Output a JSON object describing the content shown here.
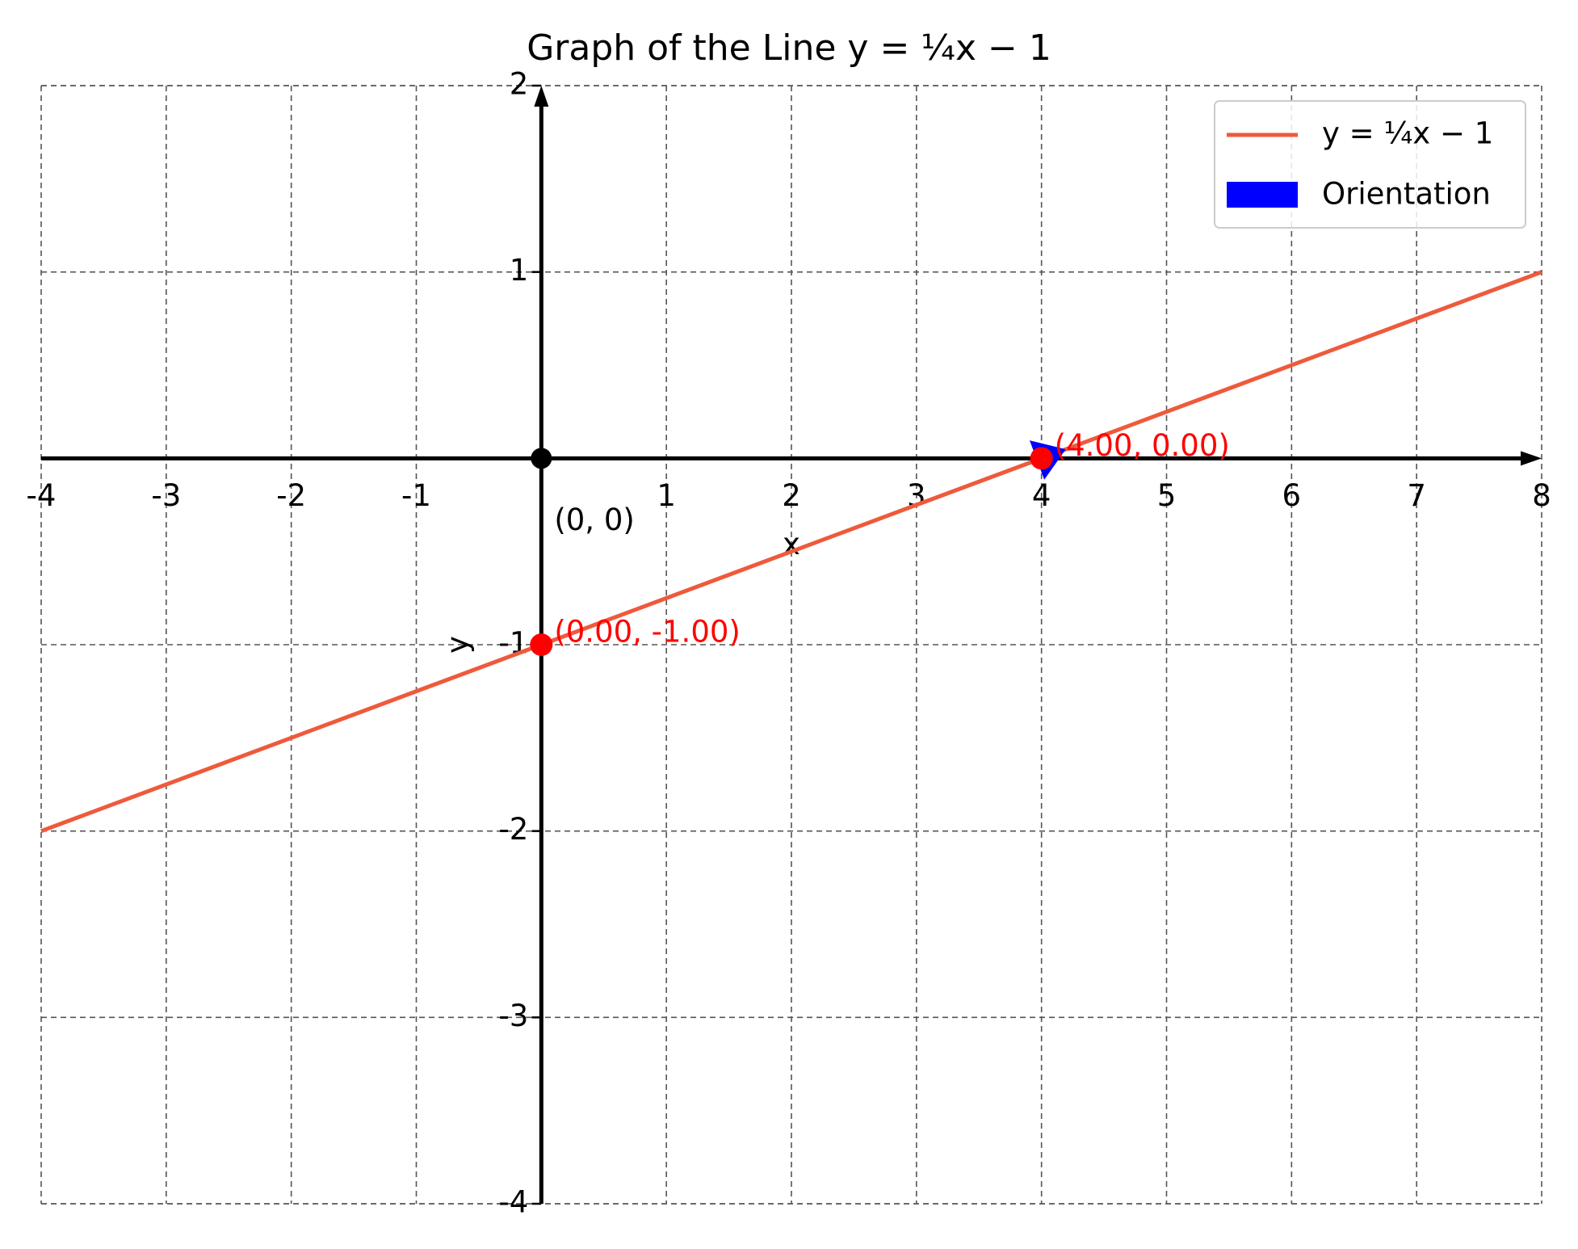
{
  "chart_data": {
    "type": "line",
    "title": "Graph of the Line y = ¼x − 1",
    "xlabel": "x",
    "ylabel": "y",
    "xlim": [
      -4,
      8
    ],
    "ylim": [
      -4,
      2
    ],
    "xticks": [
      -4,
      -3,
      -2,
      -1,
      1,
      2,
      3,
      4,
      5,
      6,
      7,
      8
    ],
    "yticks": [
      -4,
      -3,
      -2,
      -1,
      1,
      2
    ],
    "grid": true,
    "legend": "upper right",
    "series": [
      {
        "name": "y = ¼x − 1",
        "color": "#ee5a3c",
        "x": [
          -4,
          8
        ],
        "values": [
          -2,
          1
        ]
      },
      {
        "name": "Orientation",
        "color": "#0000ff"
      }
    ],
    "points": {
      "x": [
        0,
        4
      ],
      "values": [
        -1,
        0
      ],
      "labels": [
        "(0.00, -1.00)",
        "(4.00, 0.00)"
      ],
      "color": "#ff0000"
    },
    "origin": {
      "x": 0,
      "y": 0,
      "label": "(0, 0)",
      "color": "#000000"
    }
  }
}
